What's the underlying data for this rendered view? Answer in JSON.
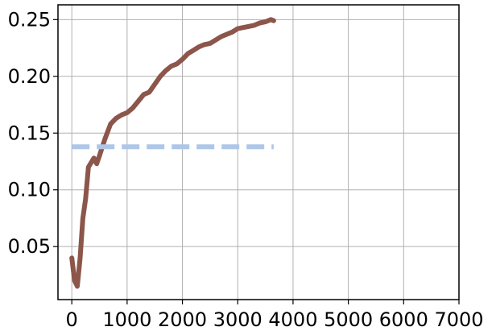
{
  "chart_data": {
    "type": "line",
    "title": "",
    "xlabel": "",
    "ylabel": "",
    "xlim": [
      -250,
      7000
    ],
    "ylim": [
      0.0033,
      0.263
    ],
    "grid": true,
    "x_ticks": [
      0,
      1000,
      2000,
      3000,
      4000,
      5000,
      6000,
      7000
    ],
    "x_tick_labels": [
      "0",
      "1000",
      "2000",
      "3000",
      "4000",
      "5000",
      "6000",
      "7000"
    ],
    "y_ticks": [
      0.05,
      0.1,
      0.15,
      0.2,
      0.25
    ],
    "y_tick_labels": [
      "0.05",
      "0.10",
      "0.15",
      "0.20",
      "0.25"
    ],
    "series": [
      {
        "color": "#8c564b",
        "style": "solid",
        "x": [
          0,
          50,
          100,
          150,
          200,
          250,
          300,
          350,
          400,
          450,
          500,
          600,
          700,
          800,
          900,
          1000,
          1100,
          1200,
          1300,
          1400,
          1500,
          1600,
          1700,
          1800,
          1900,
          2000,
          2100,
          2200,
          2300,
          2400,
          2500,
          2600,
          2700,
          2800,
          2900,
          3000,
          3100,
          3200,
          3300,
          3400,
          3500,
          3600,
          3650
        ],
        "y": [
          0.04,
          0.02,
          0.015,
          0.04,
          0.075,
          0.092,
          0.12,
          0.124,
          0.128,
          0.123,
          0.13,
          0.145,
          0.158,
          0.163,
          0.166,
          0.168,
          0.172,
          0.178,
          0.184,
          0.186,
          0.193,
          0.2,
          0.205,
          0.209,
          0.211,
          0.215,
          0.22,
          0.223,
          0.226,
          0.228,
          0.229,
          0.232,
          0.235,
          0.237,
          0.239,
          0.242,
          0.243,
          0.244,
          0.245,
          0.247,
          0.248,
          0.25,
          0.249
        ]
      },
      {
        "color": "#aec7e8",
        "style": "dashed",
        "x": [
          0,
          3650
        ],
        "y": [
          0.138,
          0.138
        ]
      }
    ]
  }
}
